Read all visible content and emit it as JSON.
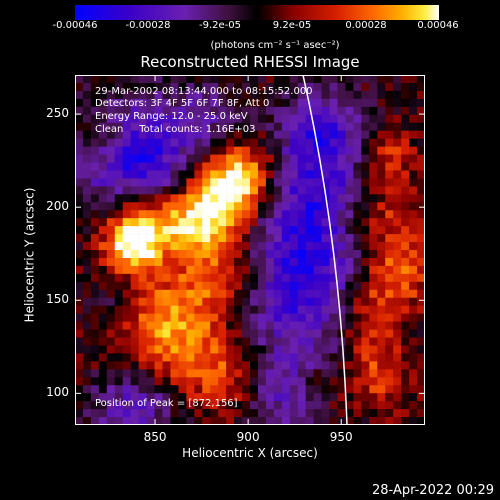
{
  "colorbar": {
    "tick_labels": [
      "-0.00046",
      "-0.00028",
      "-9.2e-05",
      "9.2e-05",
      "0.00028",
      "0.00046"
    ],
    "units_text": "(photons cm⁻² s⁻¹ asec⁻²)"
  },
  "annotations": {
    "time_range": "29-Mar-2002 08:13:44.000 to 08:15:52.000",
    "detectors": "Detectors: 3F 4F 5F 6F 7F 8F, Att 0",
    "energy": "Energy Range: 12.0 - 25.0 keV",
    "clean": "Clean     Total counts: 1.16E+03",
    "peak": "Position of Peak = [872,156]"
  },
  "footer": {
    "timestamp": "28-Apr-2022 00:29"
  },
  "colors": {
    "background": "#000000",
    "limb": "#ffffff",
    "colormap": [
      "#0000ff",
      "#3a00c8",
      "#6a20b0",
      "#9a2a9a",
      "#000000",
      "#8a0000",
      "#d82000",
      "#ff6a00",
      "#ffb000",
      "#ffee40",
      "#ffffff"
    ]
  },
  "chart_data": {
    "type": "heatmap",
    "title": "Reconstructed RHESSI Image",
    "xlabel": "Heliocentric X (arcsec)",
    "ylabel": "Heliocentric Y (arcsec)",
    "xlim": [
      807,
      995
    ],
    "ylim": [
      83,
      271
    ],
    "x_ticks": [
      850,
      900,
      950
    ],
    "y_ticks": [
      100,
      150,
      200,
      250
    ],
    "colorbar_range": [
      -0.00046,
      0.00046
    ],
    "peak": {
      "x": 872,
      "y": 156
    },
    "grid": false
  }
}
